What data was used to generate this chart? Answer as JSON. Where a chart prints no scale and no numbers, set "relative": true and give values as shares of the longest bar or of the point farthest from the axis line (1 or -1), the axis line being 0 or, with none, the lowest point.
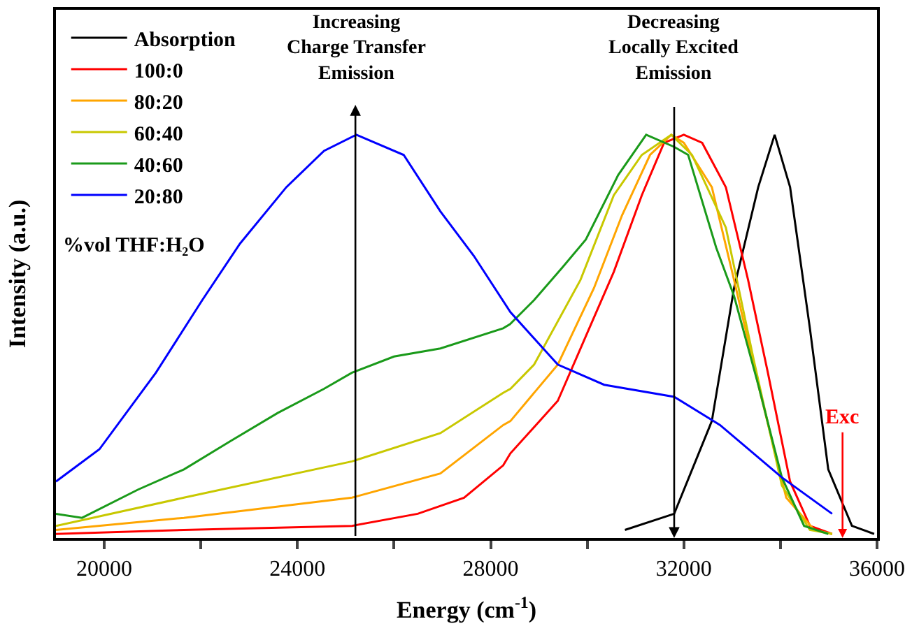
{
  "chart_data": {
    "type": "line",
    "relative": true,
    "xlabel": "Energy (cm$^{-1}$)",
    "ylabel": "Intensity (a.u.)",
    "xlim": [
      19000,
      36000
    ],
    "xticks": [
      {
        "value": 20000,
        "label": "20000"
      },
      {
        "value": 22000,
        "label": null
      },
      {
        "value": 24000,
        "label": "24000"
      },
      {
        "value": 26000,
        "label": null
      },
      {
        "value": 28000,
        "label": "28000"
      },
      {
        "value": 30000,
        "label": null
      },
      {
        "value": 32000,
        "label": "32000"
      },
      {
        "value": 34000,
        "label": null
      },
      {
        "value": 36000,
        "label": "36000"
      }
    ],
    "tick_labels": "x",
    "legend": "top left",
    "legend_title": "%vol THF:H₂O",
    "marker": "none",
    "line_style": "solid",
    "series": [
      {
        "name": "Absorption",
        "color": "#000000",
        "x": [
          30780,
          31800,
          32580,
          33040,
          33540,
          33880,
          34200,
          34610,
          34990,
          35480,
          35940
        ],
        "values": [
          0.02,
          0.06,
          0.29,
          0.62,
          0.87,
          1.0,
          0.87,
          0.52,
          0.17,
          0.03,
          0.01
        ]
      },
      {
        "name": "100:0",
        "color": "#ff0000",
        "x": [
          19000,
          21650,
          25130,
          26490,
          27450,
          28260,
          28410,
          29390,
          29970,
          30550,
          31130,
          31590,
          32000,
          32380,
          32870,
          33330,
          33740,
          34200,
          34610,
          35070
        ],
        "values": [
          0.01,
          0.02,
          0.03,
          0.06,
          0.1,
          0.18,
          0.21,
          0.34,
          0.5,
          0.66,
          0.85,
          0.98,
          1.0,
          0.98,
          0.87,
          0.64,
          0.41,
          0.14,
          0.03,
          0.01
        ]
      },
      {
        "name": "80:20",
        "color": "#ffa500",
        "x": [
          19000,
          21650,
          25130,
          26960,
          28260,
          28410,
          29390,
          30140,
          30720,
          31300,
          31740,
          32000,
          32580,
          33040,
          33540,
          34120,
          34700,
          35070
        ],
        "values": [
          0.02,
          0.05,
          0.1,
          0.16,
          0.28,
          0.29,
          0.43,
          0.62,
          0.8,
          0.95,
          1.0,
          0.98,
          0.87,
          0.64,
          0.38,
          0.1,
          0.02,
          0.01
        ]
      },
      {
        "name": "60:40",
        "color": "#c8c800",
        "x": [
          19000,
          21650,
          25130,
          26960,
          28260,
          28410,
          28900,
          29860,
          30550,
          31130,
          31740,
          32170,
          32870,
          33450,
          34030,
          34610,
          35070
        ],
        "values": [
          0.03,
          0.1,
          0.19,
          0.26,
          0.36,
          0.37,
          0.43,
          0.64,
          0.85,
          0.95,
          1.0,
          0.95,
          0.77,
          0.44,
          0.13,
          0.02,
          0.01
        ]
      },
      {
        "name": "40:60",
        "color": "#1a9a1a",
        "x": [
          19000,
          19540,
          20700,
          21650,
          22610,
          23590,
          24550,
          25130,
          26000,
          26960,
          28260,
          28400,
          28900,
          29480,
          29970,
          30640,
          31220,
          31800,
          32090,
          32670,
          33040,
          33540,
          34030,
          34490,
          34990
        ],
        "values": [
          0.06,
          0.05,
          0.12,
          0.17,
          0.24,
          0.31,
          0.37,
          0.41,
          0.45,
          0.47,
          0.52,
          0.53,
          0.59,
          0.67,
          0.74,
          0.9,
          1.0,
          0.97,
          0.95,
          0.72,
          0.6,
          0.38,
          0.15,
          0.03,
          0.01
        ]
      },
      {
        "name": "20:80",
        "color": "#0000ff",
        "x": [
          19000,
          19900,
          21070,
          22030,
          22810,
          23770,
          24550,
          25220,
          26200,
          26960,
          27650,
          28410,
          29390,
          30350,
          31800,
          32750,
          34030,
          35070
        ],
        "values": [
          0.14,
          0.22,
          0.41,
          0.59,
          0.73,
          0.87,
          0.96,
          1.0,
          0.95,
          0.81,
          0.7,
          0.56,
          0.43,
          0.38,
          0.35,
          0.28,
          0.15,
          0.06
        ]
      }
    ],
    "ref_lines": [
      {
        "axis": "x",
        "value": 25200,
        "label": "Increasing\nCharge Transfer\nEmission",
        "color": "#000000"
      },
      {
        "axis": "x",
        "value": 31800,
        "label": "Decreasing\nLocally Excited\nEmission",
        "color": "#000000"
      }
    ],
    "annotations": [
      "Exc"
    ]
  }
}
